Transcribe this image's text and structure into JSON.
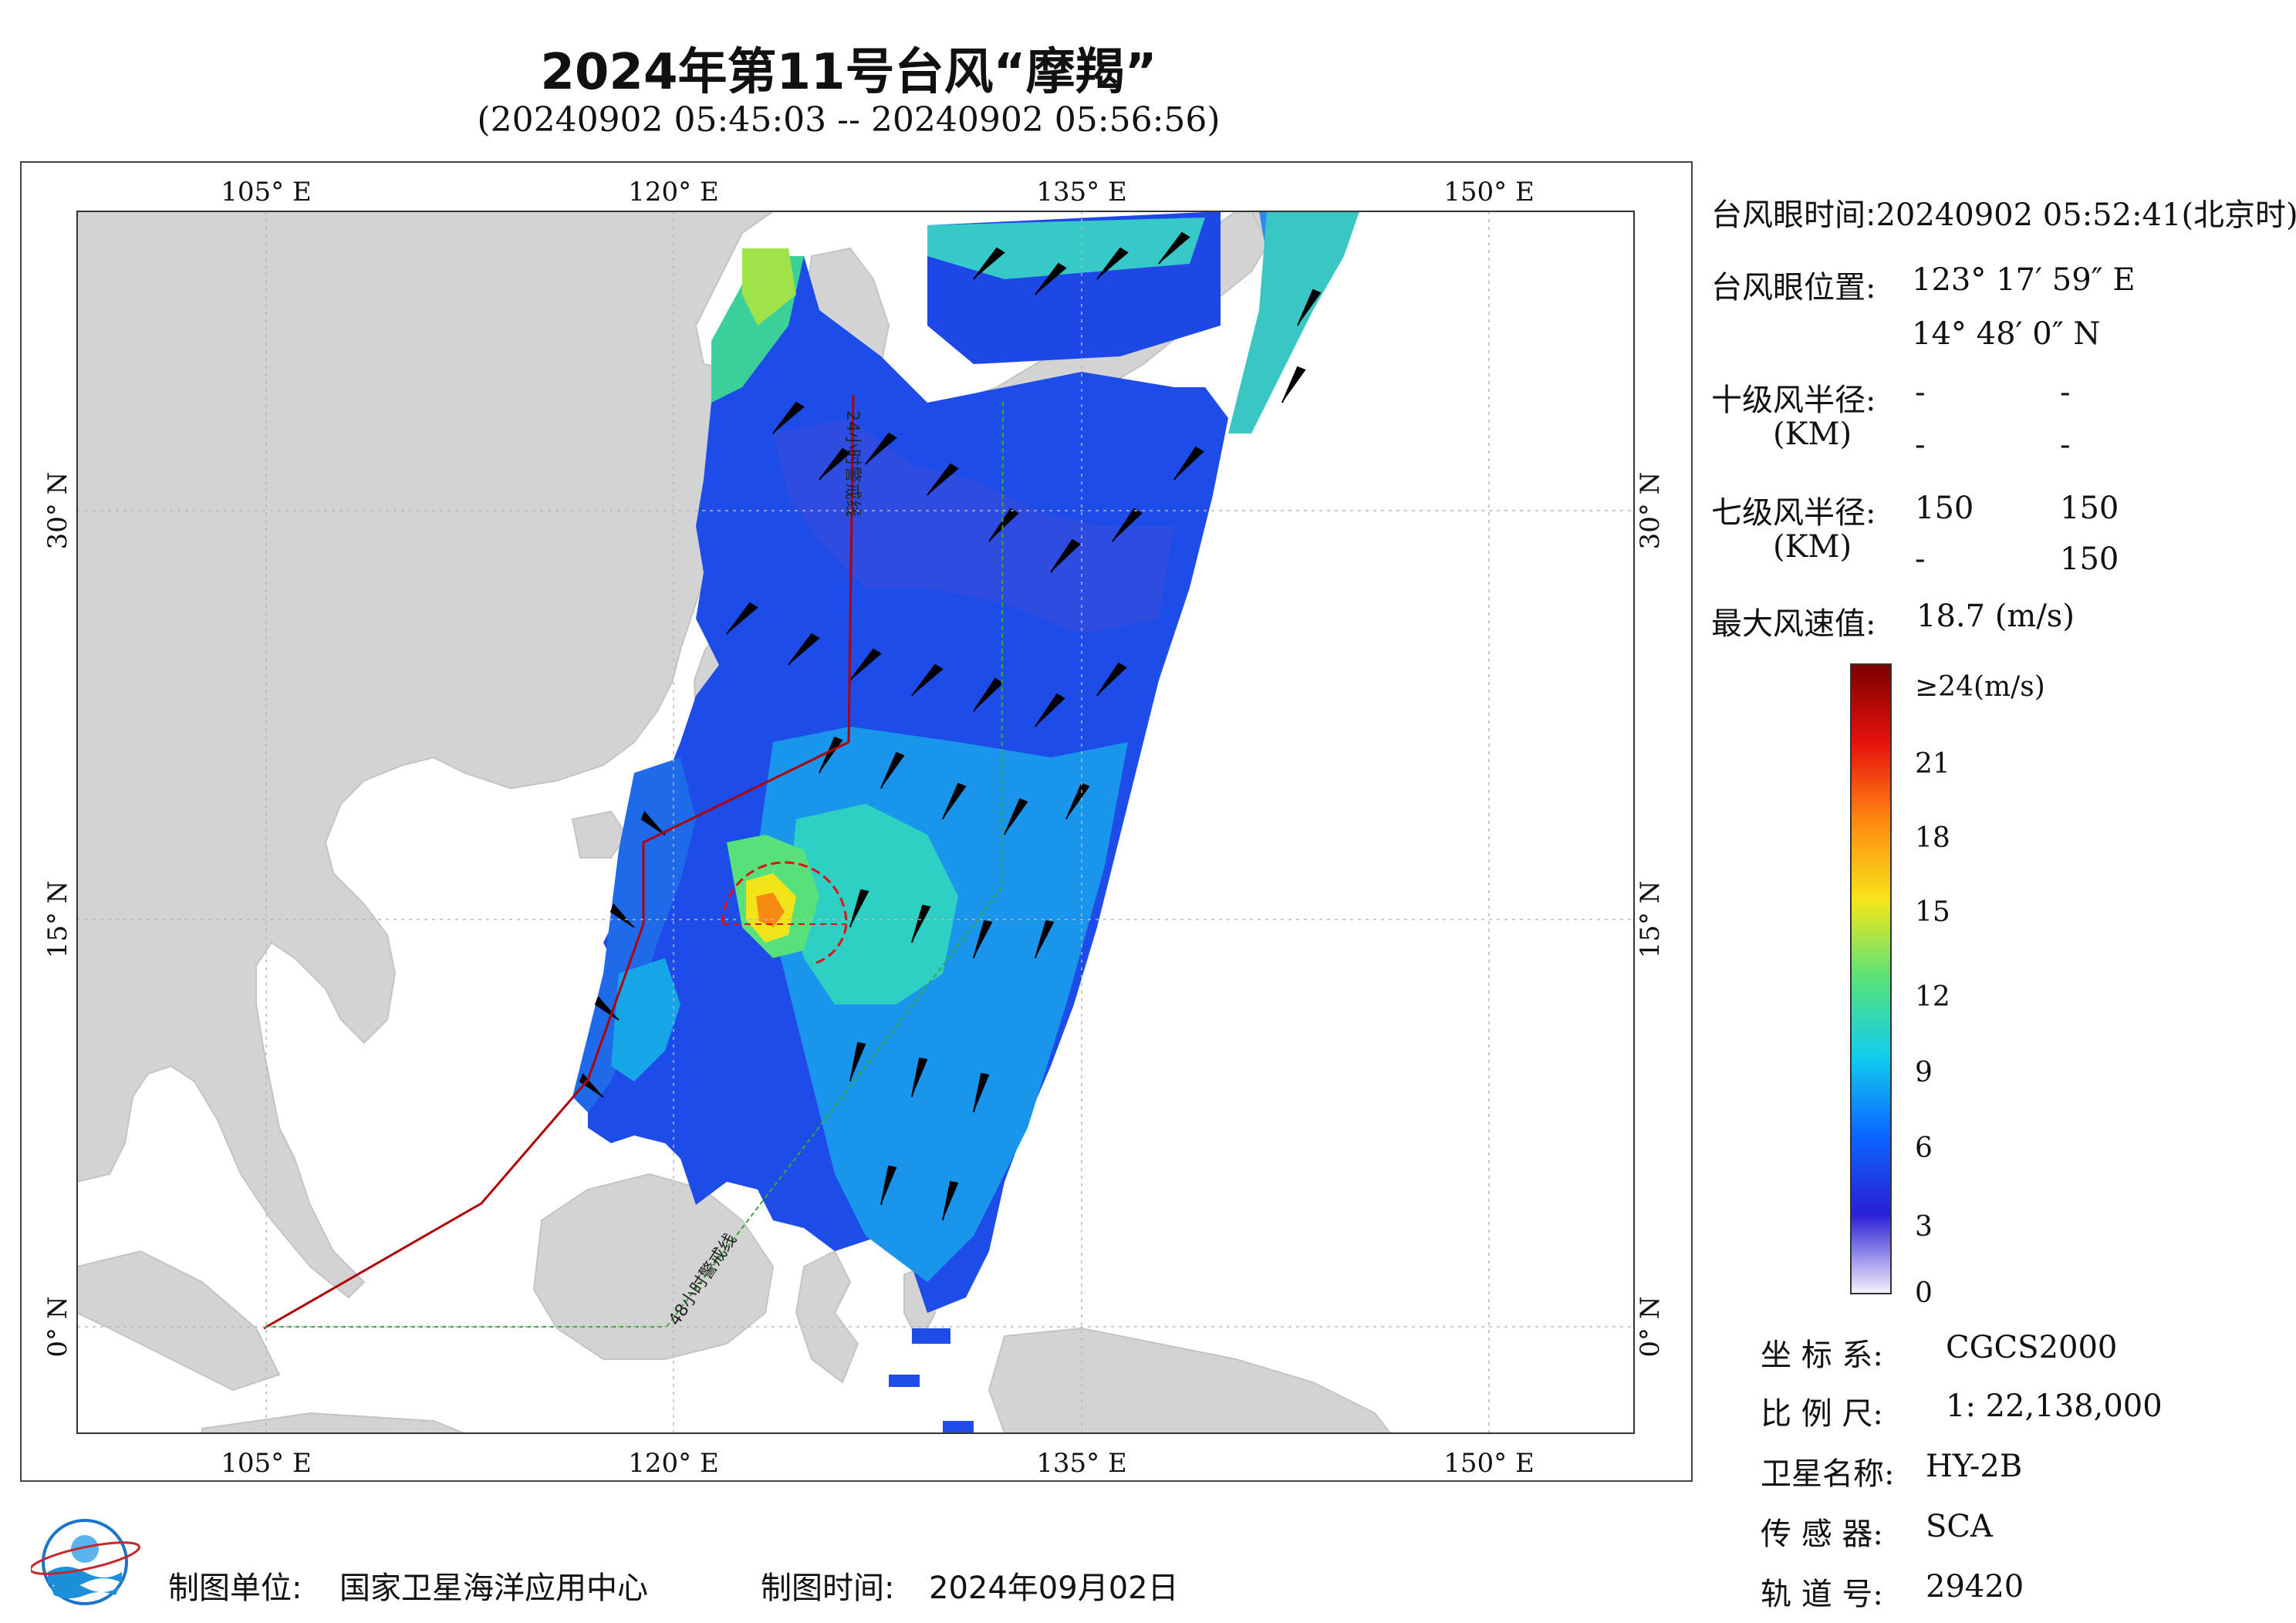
{
  "title": "2024年第11号台风“摩羯”",
  "subtitle": "(20240902 05:45:03 -- 20240902 05:56:56)",
  "map": {
    "lon_ticks": [
      "105° E",
      "120° E",
      "135° E",
      "150° E"
    ],
    "lat_ticks": [
      "30° N",
      "15° N",
      "0° N"
    ],
    "warning_24h": "24小时警戒线",
    "warning_48h": "48小时警戒线"
  },
  "info": {
    "eye_time_label": "台风眼时间:",
    "eye_time_value": "20240902 05:52:41(北京时)",
    "eye_pos_label": "台风眼位置:",
    "eye_lon": "123° 17′ 59″ E",
    "eye_lat": "14° 48′ 0″ N",
    "r10_label": "十级风半径:",
    "r10_unit": "(KM)",
    "r10_values": [
      "-",
      "-",
      "-",
      "-"
    ],
    "r7_label": "七级风半径:",
    "r7_unit": "(KM)",
    "r7_values": [
      "150",
      "150",
      "-",
      "150"
    ],
    "max_wind_label": "最大风速值:",
    "max_wind_value": "18.7  (m/s)"
  },
  "colorbar": {
    "top_label": "≥24(m/s)",
    "labels": [
      "21",
      "18",
      "15",
      "12",
      "9",
      "6",
      "3",
      "0"
    ],
    "colors": [
      "#f4f0fb",
      "#2a1fd6",
      "#0a66ff",
      "#11ccf0",
      "#56e27a",
      "#f5e51a",
      "#ff8a10",
      "#e8120e",
      "#7d0000"
    ]
  },
  "meta": {
    "coord_label": "坐 标 系:",
    "coord_value": "CGCS2000",
    "scale_label": "比 例 尺:",
    "scale_value": "1: 22,138,000",
    "sat_label": "卫星名称:",
    "sat_value": "HY-2B",
    "sensor_label": "传 感 器:",
    "sensor_value": "SCA",
    "orbit_label": "轨 道 号:",
    "orbit_value": "29420"
  },
  "footer": {
    "org_label": "制图单位:",
    "org_value": "国家卫星海洋应用中心",
    "date_label": "制图时间:",
    "date_value": "2024年09月02日"
  }
}
